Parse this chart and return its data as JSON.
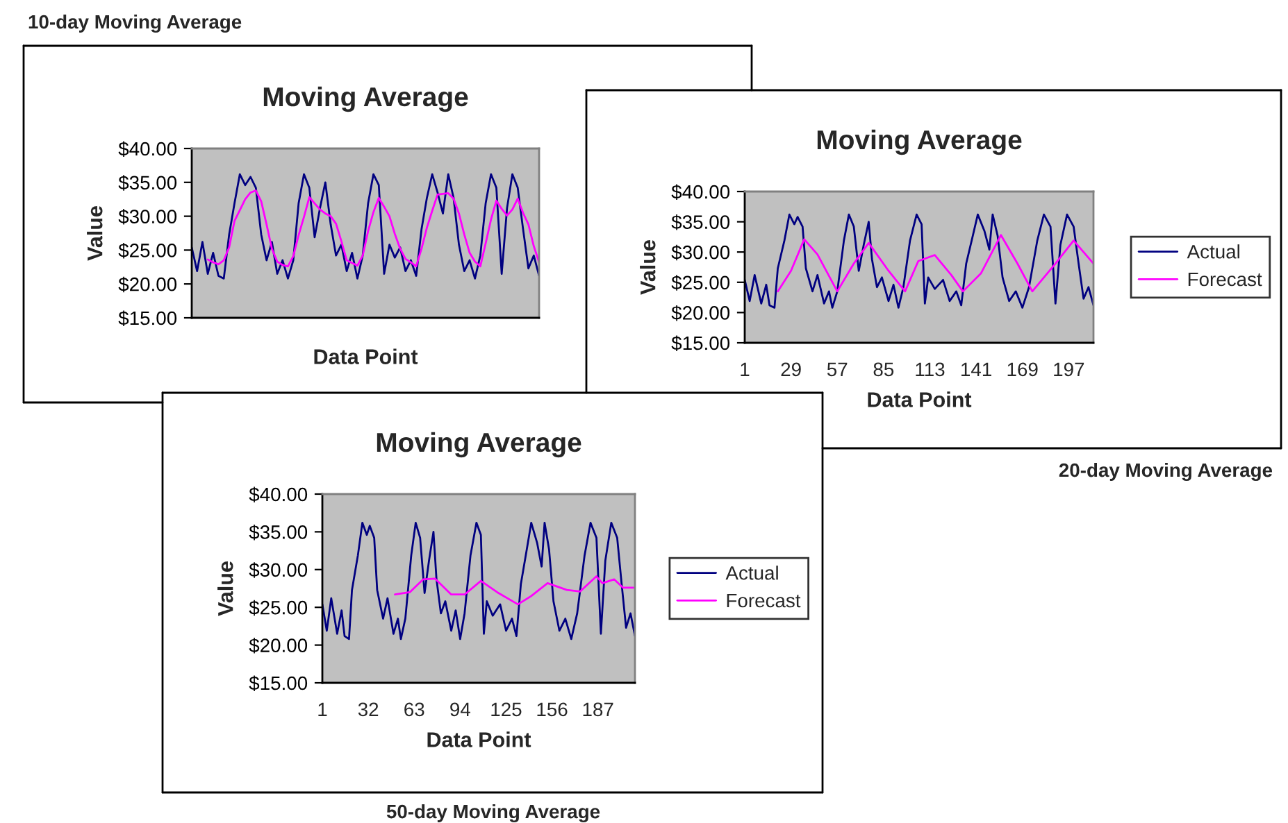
{
  "chart_data": [
    {
      "type": "line",
      "title": "Moving Average",
      "xlabel": "Data Point",
      "ylabel": "Value",
      "annotations": [
        "10-day Moving Average"
      ],
      "ylim": [
        15,
        40
      ],
      "yticks": [
        {
          "value": 15,
          "label": "$15.00"
        },
        {
          "value": 20,
          "label": "$20.00"
        },
        {
          "value": 25,
          "label": "$25.00"
        },
        {
          "value": 30,
          "label": "$30.00"
        },
        {
          "value": 35,
          "label": "$35.00"
        },
        {
          "value": 40,
          "label": "$40.00"
        }
      ],
      "grid": false,
      "legend": false,
      "categories": [
        null,
        null,
        null,
        null,
        null,
        null,
        null,
        null,
        null,
        null,
        null,
        null,
        null,
        null,
        null,
        null,
        null,
        null,
        null,
        null,
        null,
        null,
        null,
        null,
        null,
        null,
        null,
        null,
        null,
        null,
        null,
        null,
        null,
        null,
        null,
        null,
        null,
        null,
        null,
        null,
        null,
        null,
        null,
        null,
        null,
        null,
        null,
        null,
        null,
        null,
        null,
        null,
        null,
        null,
        null,
        null,
        null,
        null,
        null,
        null,
        null,
        null,
        null,
        null,
        null,
        null
      ],
      "series": [
        {
          "color": "#000080",
          "values": [
            25.4,
            21.9,
            26.2,
            21.5,
            24.6,
            21.2,
            20.8,
            27.3,
            31.9,
            36.2,
            34.6,
            35.8,
            34.2,
            27.3,
            23.5,
            26.2,
            21.5,
            23.5,
            20.8,
            23.5,
            31.9,
            36.2,
            34.2,
            26.9,
            31.2,
            35.0,
            28.8,
            24.2,
            25.8,
            21.9,
            24.6,
            20.8,
            24.2,
            31.9,
            36.2,
            34.6,
            21.5,
            25.8,
            23.9,
            25.4,
            21.9,
            23.5,
            21.2,
            28.1,
            32.7,
            36.2,
            33.5,
            30.4,
            36.2,
            32.7,
            25.8,
            21.9,
            23.5,
            20.8,
            24.2,
            31.9,
            36.2,
            34.2,
            21.5,
            31.2,
            36.2,
            34.2,
            28.1,
            22.3,
            24.2,
            21.2
          ]
        },
        {
          "color": "#ff00ff",
          "values": [
            null,
            null,
            null,
            23.6,
            23.2,
            22.9,
            23.5,
            25.4,
            29.3,
            30.9,
            32.5,
            33.5,
            33.8,
            32.2,
            28.8,
            25.2,
            23.3,
            22.8,
            22.6,
            24.1,
            27.2,
            29.9,
            32.8,
            31.9,
            31.0,
            30.4,
            30.0,
            28.9,
            26.3,
            23.5,
            23.1,
            22.7,
            24.2,
            27.8,
            30.6,
            32.7,
            31.4,
            30.0,
            27.4,
            25.2,
            23.7,
            23.2,
            22.6,
            25.2,
            28.3,
            30.8,
            33.2,
            33.3,
            33.4,
            32.6,
            30.4,
            27.3,
            24.6,
            23.3,
            22.6,
            26.0,
            29.5,
            32.3,
            31.1,
            30.1,
            31.0,
            32.6,
            30.5,
            28.8,
            25.6,
            23.2
          ]
        }
      ]
    },
    {
      "type": "line",
      "title": "Moving Average",
      "xlabel": "Data Point",
      "ylabel": "Value",
      "annotations": [
        "20-day Moving Average"
      ],
      "xlim": [
        1,
        212
      ],
      "xticks": [
        1,
        29,
        57,
        85,
        113,
        141,
        169,
        197
      ],
      "ylim": [
        15,
        40
      ],
      "yticks": [
        {
          "value": 15,
          "label": "$15.00"
        },
        {
          "value": 20,
          "label": "$20.00"
        },
        {
          "value": 25,
          "label": "$25.00"
        },
        {
          "value": 30,
          "label": "$30.00"
        },
        {
          "value": 35,
          "label": "$35.00"
        },
        {
          "value": 40,
          "label": "$40.00"
        }
      ],
      "grid": false,
      "legend": "right",
      "series": [
        {
          "name": "Actual",
          "color": "#000080",
          "x": [
            1,
            4,
            7,
            11,
            14,
            16,
            19,
            21,
            25,
            28,
            31,
            33,
            36,
            38,
            42,
            45,
            49,
            52,
            54,
            57,
            61,
            64,
            67,
            70,
            73,
            76,
            78,
            81,
            84,
            88,
            91,
            94,
            97,
            101,
            105,
            108,
            110,
            112,
            116,
            121,
            125,
            129,
            132,
            135,
            139,
            142,
            146,
            149,
            151,
            154,
            157,
            161,
            165,
            169,
            173,
            178,
            182,
            186,
            189,
            192,
            196,
            200,
            203,
            206,
            209,
            212
          ],
          "values": [
            25.4,
            21.9,
            26.2,
            21.5,
            24.6,
            21.2,
            20.8,
            27.3,
            31.9,
            36.2,
            34.6,
            35.8,
            34.2,
            27.3,
            23.5,
            26.2,
            21.5,
            23.5,
            20.8,
            23.5,
            31.9,
            36.2,
            34.2,
            26.9,
            31.2,
            35.0,
            28.8,
            24.2,
            25.8,
            21.9,
            24.6,
            20.8,
            24.2,
            31.9,
            36.2,
            34.6,
            21.5,
            25.8,
            23.9,
            25.4,
            21.9,
            23.5,
            21.2,
            28.1,
            32.7,
            36.2,
            33.5,
            30.4,
            36.2,
            32.7,
            25.8,
            21.9,
            23.5,
            20.8,
            24.2,
            31.9,
            36.2,
            34.2,
            21.5,
            31.2,
            36.2,
            34.2,
            28.1,
            22.3,
            24.2,
            21.2
          ]
        },
        {
          "name": "Forecast",
          "color": "#ff00ff",
          "x": [
            21,
            29,
            37,
            45,
            57,
            67,
            76,
            88,
            98,
            106,
            116,
            126,
            133,
            144,
            156,
            166,
            175,
            189,
            200,
            212
          ],
          "values": [
            23.5,
            26.9,
            32.1,
            29.6,
            23.5,
            28.1,
            31.5,
            26.9,
            23.5,
            28.5,
            29.5,
            26.2,
            23.5,
            26.5,
            32.8,
            28.1,
            23.5,
            28.1,
            31.9,
            28.1
          ]
        }
      ]
    },
    {
      "type": "line",
      "title": "Moving Average",
      "xlabel": "Data Point",
      "ylabel": "Value",
      "annotations": [
        "50-day Moving Average"
      ],
      "xlim": [
        1,
        212
      ],
      "xticks": [
        1,
        32,
        63,
        94,
        125,
        156,
        187
      ],
      "ylim": [
        15,
        40
      ],
      "yticks": [
        {
          "value": 15,
          "label": "$15.00"
        },
        {
          "value": 20,
          "label": "$20.00"
        },
        {
          "value": 25,
          "label": "$25.00"
        },
        {
          "value": 30,
          "label": "$30.00"
        },
        {
          "value": 35,
          "label": "$35.00"
        },
        {
          "value": 40,
          "label": "$40.00"
        }
      ],
      "grid": false,
      "legend": "right",
      "series": [
        {
          "name": "Actual",
          "color": "#000080",
          "x": [
            1,
            4,
            7,
            11,
            14,
            16,
            19,
            21,
            25,
            28,
            31,
            33,
            36,
            38,
            42,
            45,
            49,
            52,
            54,
            57,
            61,
            64,
            67,
            70,
            73,
            76,
            78,
            81,
            84,
            88,
            91,
            94,
            97,
            101,
            105,
            108,
            110,
            112,
            116,
            121,
            125,
            129,
            132,
            135,
            139,
            142,
            146,
            149,
            151,
            154,
            157,
            161,
            165,
            169,
            173,
            178,
            182,
            186,
            189,
            192,
            196,
            200,
            203,
            206,
            209,
            212
          ],
          "values": [
            25.4,
            21.9,
            26.2,
            21.5,
            24.6,
            21.2,
            20.8,
            27.3,
            31.9,
            36.2,
            34.6,
            35.8,
            34.2,
            27.3,
            23.5,
            26.2,
            21.5,
            23.5,
            20.8,
            23.5,
            31.9,
            36.2,
            34.2,
            26.9,
            31.2,
            35.0,
            28.8,
            24.2,
            25.8,
            21.9,
            24.6,
            20.8,
            24.2,
            31.9,
            36.2,
            34.6,
            21.5,
            25.8,
            23.9,
            25.4,
            21.9,
            23.5,
            21.2,
            28.1,
            32.7,
            36.2,
            33.5,
            30.4,
            36.2,
            32.7,
            25.8,
            21.9,
            23.5,
            20.8,
            24.2,
            31.9,
            36.2,
            34.2,
            21.5,
            31.2,
            36.2,
            34.2,
            28.1,
            22.3,
            24.2,
            21.2
          ]
        },
        {
          "name": "Forecast",
          "color": "#ff00ff",
          "x": [
            50,
            60,
            69,
            77,
            88,
            97,
            108,
            119,
            133,
            142,
            153,
            166,
            175,
            186,
            190,
            198,
            204,
            211
          ],
          "values": [
            26.7,
            27.0,
            28.7,
            28.8,
            26.7,
            26.7,
            28.5,
            27.0,
            25.4,
            26.5,
            28.2,
            27.3,
            27.1,
            29.1,
            28.2,
            28.7,
            27.6,
            27.6
          ]
        }
      ]
    }
  ]
}
